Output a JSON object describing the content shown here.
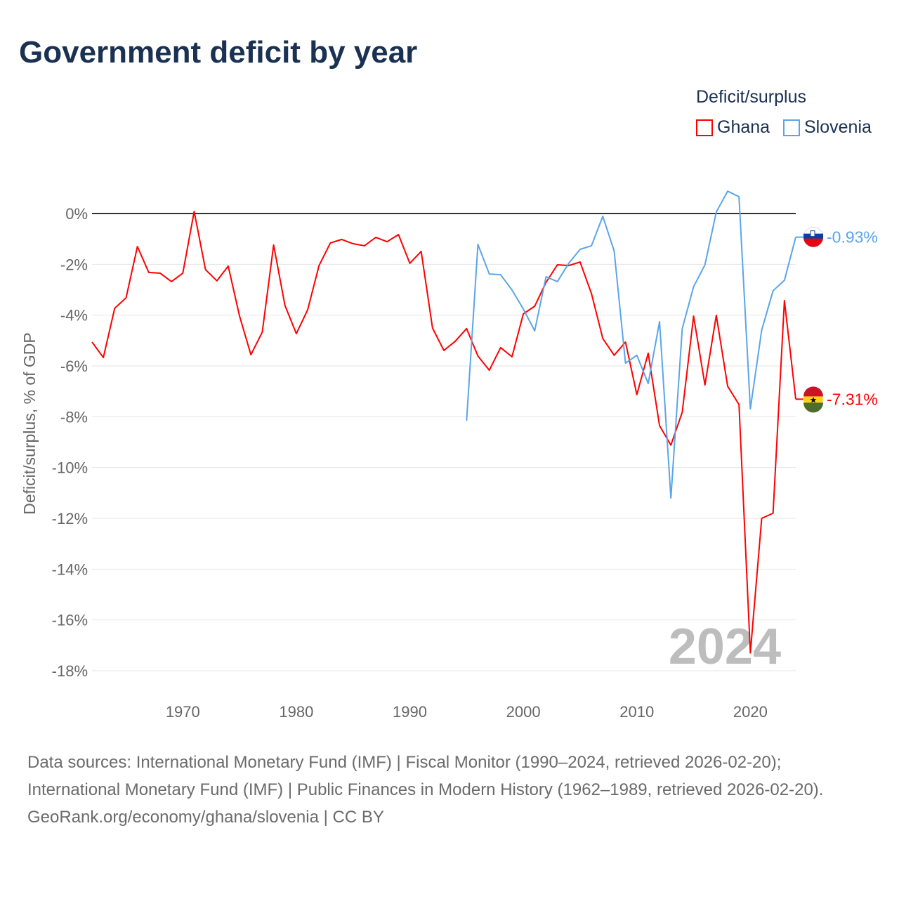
{
  "title": "Government deficit by year",
  "legend": {
    "title": "Deficit/surplus",
    "items": [
      "Ghana",
      "Slovenia"
    ]
  },
  "footer": {
    "sources": "Data sources: International Monetary Fund (IMF) | Fiscal Monitor (1990–2024, retrieved 2026-02-20); International Monetary Fund (IMF) | Public Finances in Modern History (1962–1989, retrieved 2026-02-20).",
    "credit": "GeoRank.org/economy/ghana/slovenia | CC BY"
  },
  "chart_data": {
    "type": "line",
    "title": "Government deficit by year",
    "ylabel": "Deficit/surplus, % of GDP",
    "xlim": [
      1962,
      2024
    ],
    "ylim": [
      -18,
      0
    ],
    "yticks": [
      0,
      -2,
      -4,
      -6,
      -8,
      -10,
      -12,
      -14,
      -16,
      -18
    ],
    "ytick_labels": [
      "0%",
      "-2%",
      "-4%",
      "-6%",
      "-8%",
      "-10%",
      "-12%",
      "-14%",
      "-16%",
      "-18%"
    ],
    "xticks": [
      1970,
      1980,
      1990,
      2000,
      2010,
      2020
    ],
    "xtick_labels": [
      "1970",
      "1980",
      "1990",
      "2000",
      "2010",
      "2020"
    ],
    "year_label": "2024",
    "colors": {
      "Ghana": "#ff0000",
      "Slovenia": "#5aa5ea"
    },
    "series": [
      {
        "name": "Ghana",
        "start": 1962,
        "end_label": "-7.31%",
        "values": [
          -5.06,
          -5.67,
          -3.73,
          -3.32,
          -1.3,
          -2.32,
          -2.35,
          -2.68,
          -2.35,
          0.08,
          -2.21,
          -2.65,
          -2.07,
          -4.04,
          -5.56,
          -4.67,
          -1.24,
          -3.62,
          -4.73,
          -3.79,
          -2.05,
          -1.16,
          -1.02,
          -1.19,
          -1.27,
          -0.94,
          -1.11,
          -0.83,
          -1.96,
          -1.49,
          -4.51,
          -5.39,
          -5.03,
          -4.53,
          -5.61,
          -6.17,
          -5.28,
          -5.64,
          -3.95,
          -3.65,
          -2.71,
          -2.02,
          -2.05,
          -1.91,
          -3.15,
          -4.92,
          -5.58,
          -5.06,
          -7.13,
          -5.5,
          -8.35,
          -9.12,
          -7.82,
          -4.04,
          -6.75,
          -4.01,
          -6.8,
          -7.52,
          -17.3,
          -12.0,
          -11.8,
          -3.43,
          -7.31
        ]
      },
      {
        "name": "Slovenia",
        "start": 1995,
        "end_label": "-0.93%",
        "values": [
          -8.16,
          -1.22,
          -2.38,
          -2.41,
          -3.01,
          -3.76,
          -4.62,
          -2.49,
          -2.68,
          -1.96,
          -1.41,
          -1.27,
          -0.11,
          -1.47,
          -5.89,
          -5.58,
          -6.69,
          -4.26,
          -11.2,
          -4.53,
          -2.88,
          -2.02,
          0.06,
          0.88,
          0.66,
          -7.69,
          -4.59,
          -3.04,
          -2.63,
          -0.93
        ]
      }
    ]
  }
}
